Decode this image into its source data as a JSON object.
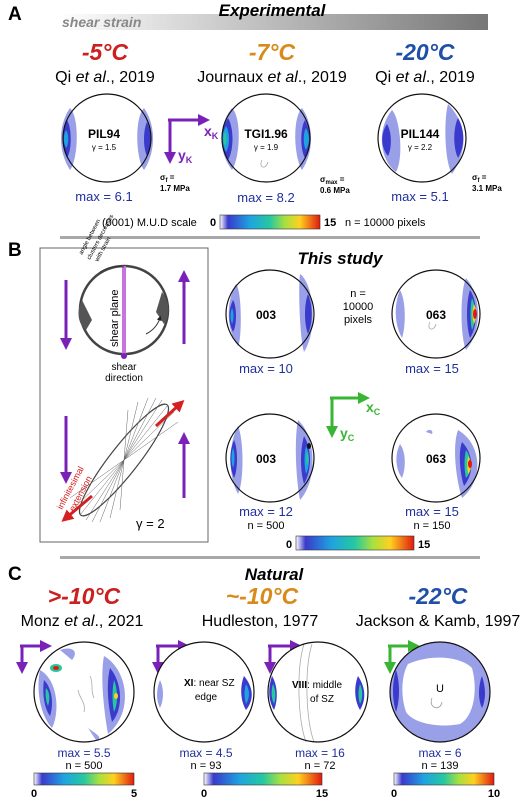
{
  "panelA": {
    "letter": "A",
    "shear_label": "shear strain",
    "title": "Experimental",
    "temps": [
      "-5°C",
      "-7°C",
      "-20°C"
    ],
    "temp_colors": [
      "#cc1f1f",
      "#d98a1a",
      "#1f4fa8"
    ],
    "refs": [
      {
        "author": "Qi ",
        "etal": "et al",
        "year": "., 2019"
      },
      {
        "author": "Journaux ",
        "etal": "et al",
        "year": "., 2019"
      },
      {
        "author": "Qi ",
        "etal": "et al",
        "year": "., 2019"
      }
    ],
    "plots": [
      {
        "id": "PIL94",
        "gamma": "γ = 1.5",
        "max": "max = 6.1",
        "stress_sym": "σ",
        "stress_sub": "f",
        "stress_val": "1.7 MPa"
      },
      {
        "id": "TGI1.96",
        "gamma": "γ = 1.9",
        "max": "max = 8.2",
        "stress_sym": "σ",
        "stress_sub": "max",
        "stress_val": "0.6 MPa"
      },
      {
        "id": "PIL144",
        "gamma": "γ = 2.2",
        "max": "max = 5.1",
        "stress_sym": "σ",
        "stress_sub": "f",
        "stress_val": "3.1 MPa"
      }
    ],
    "axes": {
      "x": "x",
      "x_sub": "K",
      "y": "y",
      "y_sub": "K"
    },
    "scale": {
      "label": "(0001) M.U.D scale",
      "min": "0",
      "max": "15",
      "note": "n = 10000 pixels"
    }
  },
  "panelB": {
    "letter": "B",
    "title": "This study",
    "schematic": {
      "plane": "shear plane",
      "direction": [
        "shear",
        "direction"
      ],
      "clusters_note": [
        "angle between",
        "clusters decreases",
        "with strain"
      ],
      "extension": [
        "infinitesimal",
        "extension"
      ],
      "gamma": "γ = 2"
    },
    "plots": [
      {
        "id": "003",
        "max": "max = 10",
        "n": ""
      },
      {
        "id": "063",
        "max": "max = 15",
        "n": ""
      },
      {
        "id": "003",
        "max": "max = 12",
        "n": "n = 500"
      },
      {
        "id": "063",
        "max": "max = 15",
        "n": "n = 150"
      }
    ],
    "n_note": [
      "n =",
      "10000",
      "pixels"
    ],
    "axes": {
      "x": "x",
      "x_sub": "C",
      "y": "y",
      "y_sub": "C"
    },
    "scale": {
      "min": "0",
      "max": "15"
    }
  },
  "panelC": {
    "letter": "C",
    "title": "Natural",
    "temps": [
      ">-10°C",
      "~-10°C",
      "-22°C"
    ],
    "temp_colors": [
      "#cc1f1f",
      "#d98a1a",
      "#1f4fa8"
    ],
    "refs": [
      {
        "author": "Monz ",
        "etal": "et al",
        "year": "., 2021"
      },
      {
        "author": "Hudleston, 1977",
        "etal": "",
        "year": ""
      },
      {
        "author": "Jackson & Kamb, 1997",
        "etal": "",
        "year": ""
      }
    ],
    "plots": [
      {
        "max": "max = 5.5",
        "n": "n = 500",
        "label1": "",
        "label2": "",
        "label3": ""
      },
      {
        "max": "max = 4.5",
        "n": "n = 93",
        "label1": "XI",
        "label2": ": near SZ",
        "label3": "edge"
      },
      {
        "max": "max = 16",
        "n": "n = 72",
        "label1": "VIII",
        "label2": ": middle",
        "label3": "of SZ"
      },
      {
        "max": "max = 6",
        "n": "n = 139",
        "label1": "U",
        "label2": "",
        "label3": ""
      }
    ],
    "scales": [
      {
        "min": "0",
        "max": "5"
      },
      {
        "min": "0",
        "max": "15"
      },
      {
        "min": "0",
        "max": "10"
      }
    ]
  },
  "colors": {
    "purple": "#7a22b8",
    "green": "#39b534",
    "red": "#d42020",
    "max_blue": "#1f2f9e",
    "lavender": "#9aa0e8",
    "gray_bar": "#a8a8a8"
  }
}
